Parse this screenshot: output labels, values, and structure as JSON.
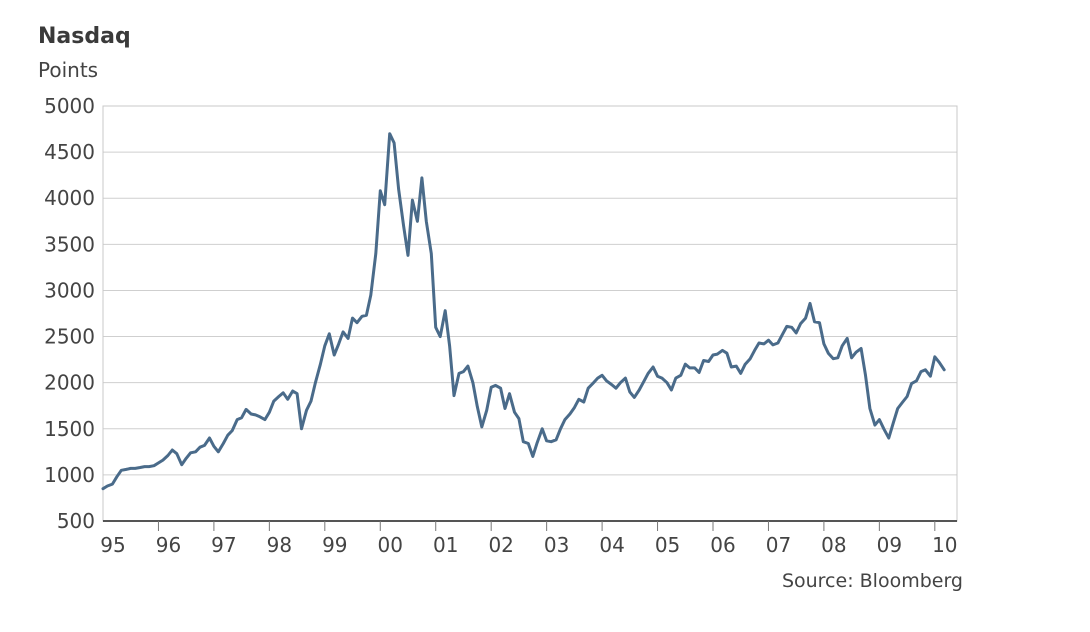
{
  "chart_data": {
    "type": "line",
    "title": "Nasdaq",
    "ylabel": "Points",
    "source": "Source: Bloomberg",
    "xlim": [
      1995.0,
      2010.4
    ],
    "ylim": [
      500,
      5000
    ],
    "yticks": [
      500,
      1000,
      1500,
      2000,
      2500,
      3000,
      3500,
      4000,
      4500,
      5000
    ],
    "xticks": [
      {
        "value": 1995,
        "label": "95"
      },
      {
        "value": 1996,
        "label": "96"
      },
      {
        "value": 1997,
        "label": "97"
      },
      {
        "value": 1998,
        "label": "98"
      },
      {
        "value": 1999,
        "label": "99"
      },
      {
        "value": 2000,
        "label": "00"
      },
      {
        "value": 2001,
        "label": "01"
      },
      {
        "value": 2002,
        "label": "02"
      },
      {
        "value": 2003,
        "label": "03"
      },
      {
        "value": 2004,
        "label": "04"
      },
      {
        "value": 2005,
        "label": "05"
      },
      {
        "value": 2006,
        "label": "06"
      },
      {
        "value": 2007,
        "label": "07"
      },
      {
        "value": 2008,
        "label": "08"
      },
      {
        "value": 2009,
        "label": "09"
      },
      {
        "value": 2010,
        "label": "10"
      }
    ],
    "grid": true,
    "line_color": "#4a6b8a",
    "series": [
      {
        "x": [
          1995.0,
          1995.08,
          1995.17,
          1995.25,
          1995.33,
          1995.42,
          1995.5,
          1995.58,
          1995.67,
          1995.75,
          1995.83,
          1995.92,
          1996.0,
          1996.08,
          1996.17,
          1996.25,
          1996.33,
          1996.42,
          1996.5,
          1996.58,
          1996.67,
          1996.75,
          1996.83,
          1996.92,
          1997.0,
          1997.08,
          1997.17,
          1997.25,
          1997.33,
          1997.42,
          1997.5,
          1997.58,
          1997.67,
          1997.75,
          1997.83,
          1997.92,
          1998.0,
          1998.08,
          1998.17,
          1998.25,
          1998.33,
          1998.42,
          1998.5,
          1998.58,
          1998.67,
          1998.75,
          1998.83,
          1998.92,
          1999.0,
          1999.08,
          1999.17,
          1999.25,
          1999.33,
          1999.42,
          1999.5,
          1999.58,
          1999.67,
          1999.75,
          1999.83,
          1999.92,
          2000.0,
          2000.08,
          2000.17,
          2000.25,
          2000.33,
          2000.42,
          2000.5,
          2000.58,
          2000.67,
          2000.75,
          2000.83,
          2000.92,
          2001.0,
          2001.08,
          2001.17,
          2001.25,
          2001.33,
          2001.42,
          2001.5,
          2001.58,
          2001.67,
          2001.75,
          2001.83,
          2001.92,
          2002.0,
          2002.08,
          2002.17,
          2002.25,
          2002.33,
          2002.42,
          2002.5,
          2002.58,
          2002.67,
          2002.75,
          2002.83,
          2002.92,
          2003.0,
          2003.08,
          2003.17,
          2003.25,
          2003.33,
          2003.42,
          2003.5,
          2003.58,
          2003.67,
          2003.75,
          2003.83,
          2003.92,
          2004.0,
          2004.08,
          2004.17,
          2004.25,
          2004.33,
          2004.42,
          2004.5,
          2004.58,
          2004.67,
          2004.75,
          2004.83,
          2004.92,
          2005.0,
          2005.08,
          2005.17,
          2005.25,
          2005.33,
          2005.42,
          2005.5,
          2005.58,
          2005.67,
          2005.75,
          2005.83,
          2005.92,
          2006.0,
          2006.08,
          2006.17,
          2006.25,
          2006.33,
          2006.42,
          2006.5,
          2006.58,
          2006.67,
          2006.75,
          2006.83,
          2006.92,
          2007.0,
          2007.08,
          2007.17,
          2007.25,
          2007.33,
          2007.42,
          2007.5,
          2007.58,
          2007.67,
          2007.75,
          2007.83,
          2007.92,
          2008.0,
          2008.08,
          2008.17,
          2008.25,
          2008.33,
          2008.42,
          2008.5,
          2008.58,
          2008.67,
          2008.75,
          2008.83,
          2008.92,
          2009.0,
          2009.08,
          2009.17,
          2009.25,
          2009.33,
          2009.42,
          2009.5,
          2009.58,
          2009.67,
          2009.75,
          2009.83,
          2009.92,
          2010.0,
          2010.08,
          2010.17
        ],
        "values": [
          850,
          880,
          900,
          980,
          1050,
          1060,
          1070,
          1070,
          1080,
          1090,
          1090,
          1100,
          1130,
          1160,
          1210,
          1270,
          1230,
          1110,
          1180,
          1240,
          1250,
          1300,
          1320,
          1400,
          1310,
          1250,
          1340,
          1430,
          1480,
          1600,
          1620,
          1710,
          1660,
          1650,
          1630,
          1600,
          1680,
          1800,
          1850,
          1890,
          1820,
          1910,
          1880,
          1500,
          1700,
          1800,
          2000,
          2200,
          2400,
          2530,
          2300,
          2420,
          2550,
          2480,
          2700,
          2650,
          2720,
          2730,
          2950,
          3400,
          4080,
          3930,
          4700,
          4600,
          4100,
          3700,
          3380,
          3980,
          3750,
          4220,
          3750,
          3400,
          2600,
          2500,
          2780,
          2400,
          1860,
          2100,
          2120,
          2180,
          2000,
          1740,
          1520,
          1700,
          1950,
          1970,
          1940,
          1720,
          1880,
          1680,
          1610,
          1360,
          1340,
          1200,
          1350,
          1500,
          1370,
          1360,
          1380,
          1500,
          1600,
          1660,
          1730,
          1820,
          1790,
          1940,
          1990,
          2050,
          2080,
          2020,
          1980,
          1940,
          2000,
          2050,
          1900,
          1840,
          1920,
          2010,
          2100,
          2170,
          2070,
          2050,
          2000,
          1920,
          2050,
          2080,
          2200,
          2160,
          2160,
          2110,
          2240,
          2230,
          2300,
          2310,
          2350,
          2320,
          2170,
          2180,
          2100,
          2200,
          2260,
          2350,
          2430,
          2420,
          2460,
          2410,
          2430,
          2520,
          2610,
          2600,
          2540,
          2640,
          2700,
          2860,
          2660,
          2650,
          2420,
          2320,
          2260,
          2270,
          2400,
          2480,
          2270,
          2330,
          2370,
          2080,
          1720,
          1540,
          1600,
          1500,
          1400,
          1560,
          1720,
          1790,
          1850,
          1990,
          2020,
          2120,
          2140,
          2070,
          2280,
          2220,
          2140
        ]
      }
    ]
  }
}
